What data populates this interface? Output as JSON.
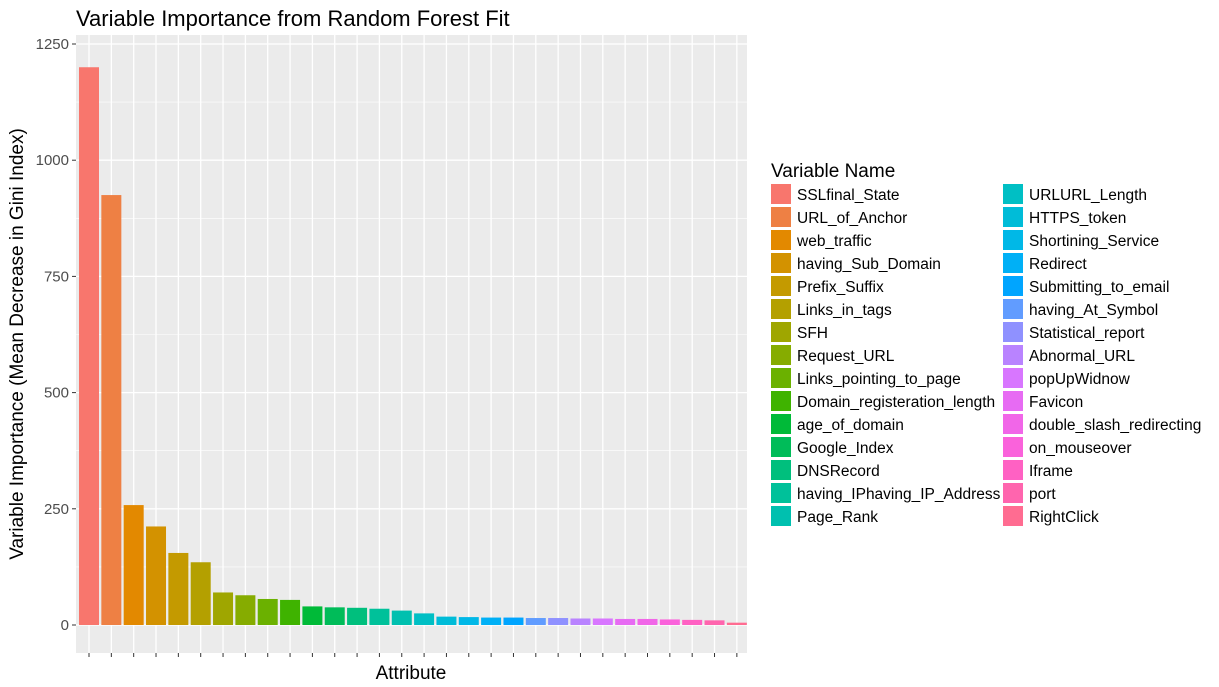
{
  "chart_data": {
    "type": "bar",
    "title": "Variable Importance from Random Forest Fit",
    "xlabel": "Attribute",
    "ylabel": "Variable Importance (Mean Decrease in Gini Index)",
    "ylim": [
      0,
      1250
    ],
    "yticks": [
      0,
      250,
      500,
      750,
      1000,
      1250
    ],
    "grid": true,
    "legend_position": "right",
    "legend_title": "Variable Name",
    "categories": [
      "SSLfinal_State",
      "URL_of_Anchor",
      "web_traffic",
      "having_Sub_Domain",
      "Prefix_Suffix",
      "Links_in_tags",
      "SFH",
      "Request_URL",
      "Links_pointing_to_page",
      "Domain_registeration_length",
      "age_of_domain",
      "Google_Index",
      "DNSRecord",
      "having_IPhaving_IP_Address",
      "Page_Rank",
      "URLURL_Length",
      "HTTPS_token",
      "Shortining_Service",
      "Redirect",
      "Submitting_to_email",
      "having_At_Symbol",
      "Statistical_report",
      "Abnormal_URL",
      "popUpWidnow",
      "Favicon",
      "double_slash_redirecting",
      "on_mouseover",
      "Iframe",
      "port",
      "RightClick"
    ],
    "values": [
      1200,
      925,
      258,
      212,
      155,
      135,
      70,
      64,
      56,
      54,
      40,
      38,
      37,
      35,
      31,
      25,
      18,
      17,
      16,
      16,
      15,
      15,
      14,
      14,
      13,
      13,
      12,
      11,
      10,
      5
    ],
    "colors": [
      "#F8766D",
      "#EE8044",
      "#E38900",
      "#D39200",
      "#C49A00",
      "#B4A000",
      "#9FA600",
      "#86AC00",
      "#6BB100",
      "#3FB300",
      "#00BA38",
      "#00BC59",
      "#00BF7D",
      "#00C19A",
      "#00C0AF",
      "#00BFC4",
      "#00BCD8",
      "#00B8E7",
      "#00B0F6",
      "#00A5FF",
      "#619CFF",
      "#8F91FF",
      "#B983FF",
      "#D876FF",
      "#E76BF3",
      "#F166E8",
      "#FA62DB",
      "#FF61C3",
      "#FF65AE",
      "#FF6C91"
    ]
  }
}
